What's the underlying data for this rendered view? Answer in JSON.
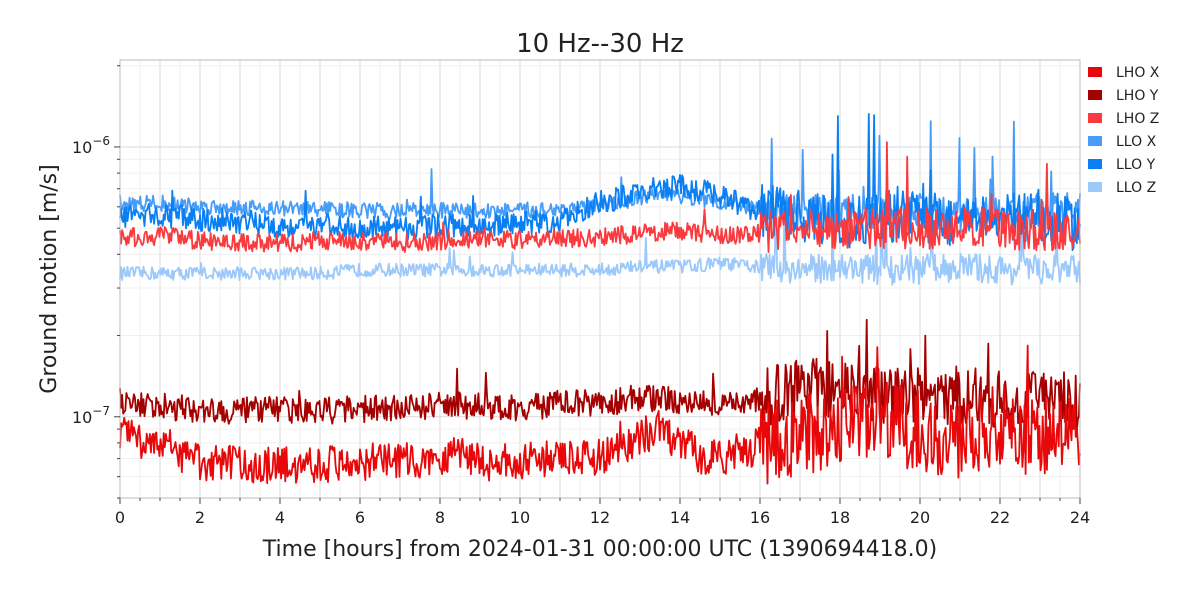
{
  "chart_data": {
    "type": "line",
    "title": "10 Hz--30 Hz",
    "xlabel": "Time [hours] from 2024-01-31 00:00:00 UTC (1390694418.0)",
    "ylabel": "Ground motion [m/s]",
    "yscale": "log",
    "xlim": [
      0,
      24
    ],
    "ylim": [
      5e-08,
      2.1e-06
    ],
    "grid": true,
    "legend_position": "right-outside-top",
    "x_ticks": [
      "0",
      "2",
      "4",
      "6",
      "8",
      "10",
      "12",
      "14",
      "16",
      "18",
      "20",
      "22",
      "24"
    ],
    "y_ticks": [
      {
        "value": 1e-07,
        "label": "10",
        "exp": "−7"
      },
      {
        "value": 1e-06,
        "label": "10",
        "exp": "−6"
      }
    ],
    "series": [
      {
        "name": "LHO X",
        "color": "#e8080a",
        "x": [
          0,
          0.5,
          1,
          1.5,
          2,
          2.5,
          3,
          3.5,
          4,
          4.5,
          5,
          6,
          7,
          8,
          8.5,
          9,
          10,
          11,
          11.5,
          12,
          12.5,
          13,
          13.5,
          14,
          14.5,
          15,
          16,
          17,
          18,
          19,
          20,
          21,
          21.5,
          22,
          22.5,
          23,
          23.5,
          24
        ],
        "y": [
          8.5e-08,
          8.2e-08,
          8.3e-08,
          7e-08,
          6.8e-08,
          6.7e-08,
          6.7e-08,
          6.6e-08,
          6.6e-08,
          6.7e-08,
          6.7e-08,
          6.8e-08,
          6.8e-08,
          7e-08,
          7.6e-08,
          6.8e-08,
          6.8e-08,
          7e-08,
          6.9e-08,
          7.2e-08,
          7.6e-08,
          8.5e-08,
          9e-08,
          8e-08,
          7.2e-08,
          7.1e-08,
          7.8e-08,
          8.5e-08,
          9.5e-08,
          9.5e-08,
          9e-08,
          8e-08,
          8.8e-08,
          9.2e-08,
          8.5e-08,
          8.7e-08,
          8.8e-08,
          8e-08
        ]
      },
      {
        "name": "LHO Y",
        "color": "#a50000",
        "x": [
          0,
          1,
          2,
          3,
          4,
          5,
          6,
          7,
          8,
          9,
          10,
          11,
          12,
          13,
          14,
          15,
          16,
          17,
          18,
          19,
          20,
          21,
          22,
          23,
          24
        ],
        "y": [
          1.15e-07,
          1.1e-07,
          1.05e-07,
          1.05e-07,
          1.07e-07,
          1.05e-07,
          1.07e-07,
          1.07e-07,
          1.1e-07,
          1.1e-07,
          1.08e-07,
          1.12e-07,
          1.12e-07,
          1.18e-07,
          1.15e-07,
          1.12e-07,
          1.15e-07,
          1.3e-07,
          1.25e-07,
          1.2e-07,
          1.18e-07,
          1.2e-07,
          1.15e-07,
          1.2e-07,
          1.1e-07
        ]
      },
      {
        "name": "LHO Z",
        "color": "#fb3a3e",
        "x": [
          0,
          1,
          2,
          3,
          4,
          5,
          6,
          7,
          8,
          9,
          10,
          11,
          12,
          13,
          14,
          15,
          16,
          17,
          18,
          19,
          20,
          21,
          22,
          23,
          24
        ],
        "y": [
          4.6e-07,
          4.7e-07,
          4.5e-07,
          4.4e-07,
          4.4e-07,
          4.5e-07,
          4.5e-07,
          4.4e-07,
          4.5e-07,
          4.6e-07,
          4.5e-07,
          4.6e-07,
          4.6e-07,
          4.8e-07,
          4.9e-07,
          4.7e-07,
          4.8e-07,
          5e-07,
          5e-07,
          5e-07,
          5e-07,
          5e-07,
          5e-07,
          4.9e-07,
          4.6e-07
        ]
      },
      {
        "name": "LLO X",
        "color": "#479cf8",
        "x": [
          0,
          1,
          2,
          3,
          4,
          5,
          6,
          7,
          8,
          9,
          10,
          11,
          12,
          13,
          14,
          15,
          16,
          17,
          18,
          19,
          20,
          21,
          22,
          23,
          24
        ],
        "y": [
          6.2e-07,
          6.2e-07,
          6e-07,
          6e-07,
          5.9e-07,
          5.9e-07,
          5.8e-07,
          5.8e-07,
          5.8e-07,
          5.8e-07,
          5.8e-07,
          5.9e-07,
          6e-07,
          6.5e-07,
          6.6e-07,
          6.3e-07,
          5.8e-07,
          5.7e-07,
          5.8e-07,
          5.7e-07,
          5.8e-07,
          5.6e-07,
          5.7e-07,
          5.8e-07,
          5.8e-07
        ]
      },
      {
        "name": "LLO Y",
        "color": "#0a7ff3",
        "x": [
          0,
          1,
          2,
          3,
          4,
          5,
          6,
          7,
          8,
          9,
          10,
          11,
          12,
          13,
          14,
          15,
          16,
          17,
          18,
          19,
          20,
          21,
          22,
          23,
          24
        ],
        "y": [
          5.5e-07,
          5.6e-07,
          5.4e-07,
          5.3e-07,
          5.1e-07,
          5.1e-07,
          5e-07,
          5e-07,
          5.1e-07,
          5.1e-07,
          5.2e-07,
          5.3e-07,
          6.2e-07,
          6.8e-07,
          7.2e-07,
          6.6e-07,
          5.8e-07,
          5.6e-07,
          5.2e-07,
          5.4e-07,
          5.6e-07,
          5.2e-07,
          5.3e-07,
          5.6e-07,
          5.1e-07
        ]
      },
      {
        "name": "LLO Z",
        "color": "#9bc9fb",
        "x": [
          0,
          1,
          2,
          3,
          4,
          5,
          6,
          7,
          8,
          9,
          10,
          11,
          12,
          13,
          14,
          15,
          16,
          17,
          18,
          19,
          20,
          21,
          22,
          23,
          24
        ],
        "y": [
          3.4e-07,
          3.4e-07,
          3.4e-07,
          3.4e-07,
          3.4e-07,
          3.4e-07,
          3.5e-07,
          3.5e-07,
          3.5e-07,
          3.5e-07,
          3.5e-07,
          3.5e-07,
          3.5e-07,
          3.6e-07,
          3.6e-07,
          3.7e-07,
          3.6e-07,
          3.5e-07,
          3.6e-07,
          3.5e-07,
          3.5e-07,
          3.6e-07,
          3.5e-07,
          3.5e-07,
          3.5e-07
        ]
      }
    ]
  }
}
